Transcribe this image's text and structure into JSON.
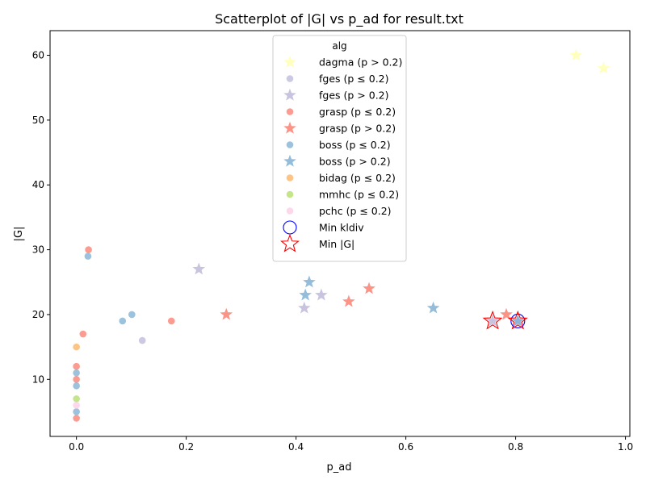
{
  "chart_data": {
    "type": "scatter",
    "title": "Scatterplot of |G| vs p_ad for result.txt",
    "xlabel": "p_ad",
    "ylabel": "|G|",
    "xlim": [
      -0.048,
      1.008
    ],
    "ylim": [
      1.2,
      63.8
    ],
    "xticks": [
      0.0,
      0.2,
      0.4,
      0.6,
      0.8,
      1.0
    ],
    "xtick_labels": [
      "0.0",
      "0.2",
      "0.4",
      "0.6",
      "0.8",
      "1.0"
    ],
    "yticks": [
      10,
      20,
      30,
      40,
      50,
      60
    ],
    "ytick_labels": [
      "10",
      "20",
      "30",
      "40",
      "50",
      "60"
    ],
    "grid": false,
    "legend": {
      "title": "alg",
      "placement": "top-center",
      "entries": [
        {
          "label": "dagma (p > 0.2)",
          "marker": "star",
          "color": "#ffffb3"
        },
        {
          "label": "fges (p ≤ 0.2)",
          "marker": "circle",
          "color": "#bebada"
        },
        {
          "label": "fges (p > 0.2)",
          "marker": "star",
          "color": "#bebada"
        },
        {
          "label": "grasp (p ≤ 0.2)",
          "marker": "circle",
          "color": "#fb8072"
        },
        {
          "label": "grasp (p > 0.2)",
          "marker": "star",
          "color": "#fb8072"
        },
        {
          "label": "boss (p ≤ 0.2)",
          "marker": "circle",
          "color": "#80b1d3"
        },
        {
          "label": "boss (p > 0.2)",
          "marker": "star",
          "color": "#80b1d3"
        },
        {
          "label": "bidag (p ≤ 0.2)",
          "marker": "circle",
          "color": "#fdb462"
        },
        {
          "label": "mmhc (p ≤ 0.2)",
          "marker": "circle",
          "color": "#b3de69"
        },
        {
          "label": "pchc (p ≤ 0.2)",
          "marker": "circle",
          "color": "#fccde5"
        },
        {
          "label": "Min kldiv",
          "marker": "open-circle",
          "color": "#0000ff"
        },
        {
          "label": "Min |G|",
          "marker": "open-star",
          "color": "#ff0000"
        }
      ]
    },
    "series": [
      {
        "name": "dagma (p > 0.2)",
        "marker": "star",
        "color": "#ffffb3",
        "points": [
          {
            "x": 0.91,
            "y": 60
          },
          {
            "x": 0.96,
            "y": 58
          }
        ]
      },
      {
        "name": "fges (p ≤ 0.2)",
        "marker": "circle",
        "color": "#bebada",
        "points": [
          {
            "x": 0.12,
            "y": 16
          }
        ]
      },
      {
        "name": "fges (p > 0.2)",
        "marker": "star",
        "color": "#bebada",
        "points": [
          {
            "x": 0.223,
            "y": 27
          },
          {
            "x": 0.415,
            "y": 21
          },
          {
            "x": 0.446,
            "y": 23
          },
          {
            "x": 0.758,
            "y": 19
          },
          {
            "x": 0.804,
            "y": 19
          }
        ]
      },
      {
        "name": "grasp (p ≤ 0.2)",
        "marker": "circle",
        "color": "#fb8072",
        "points": [
          {
            "x": 0.022,
            "y": 30
          },
          {
            "x": 0.012,
            "y": 17
          },
          {
            "x": 0.173,
            "y": 19
          },
          {
            "x": 0.0,
            "y": 12
          },
          {
            "x": 0.0,
            "y": 10
          },
          {
            "x": 0.0,
            "y": 4
          }
        ]
      },
      {
        "name": "grasp (p > 0.2)",
        "marker": "star",
        "color": "#fb8072",
        "points": [
          {
            "x": 0.273,
            "y": 20
          },
          {
            "x": 0.496,
            "y": 22
          },
          {
            "x": 0.533,
            "y": 24
          },
          {
            "x": 0.783,
            "y": 20
          }
        ]
      },
      {
        "name": "boss (p ≤ 0.2)",
        "marker": "circle",
        "color": "#80b1d3",
        "points": [
          {
            "x": 0.021,
            "y": 29
          },
          {
            "x": 0.101,
            "y": 20
          },
          {
            "x": 0.084,
            "y": 19
          },
          {
            "x": 0.0,
            "y": 11
          },
          {
            "x": 0.0,
            "y": 9
          },
          {
            "x": 0.0,
            "y": 5
          }
        ]
      },
      {
        "name": "boss (p > 0.2)",
        "marker": "star",
        "color": "#80b1d3",
        "points": [
          {
            "x": 0.424,
            "y": 25
          },
          {
            "x": 0.417,
            "y": 23
          },
          {
            "x": 0.65,
            "y": 21
          },
          {
            "x": 0.804,
            "y": 19
          }
        ]
      },
      {
        "name": "bidag (p ≤ 0.2)",
        "marker": "circle",
        "color": "#fdb462",
        "points": [
          {
            "x": 0.0,
            "y": 15
          }
        ]
      },
      {
        "name": "mmhc (p ≤ 0.2)",
        "marker": "circle",
        "color": "#b3de69",
        "points": [
          {
            "x": 0.0,
            "y": 7
          }
        ]
      },
      {
        "name": "pchc (p ≤ 0.2)",
        "marker": "circle",
        "color": "#fccde5",
        "points": [
          {
            "x": 0.0,
            "y": 6
          }
        ]
      },
      {
        "name": "Min kldiv",
        "marker": "open-circle",
        "color": "#0000ff",
        "points": [
          {
            "x": 0.804,
            "y": 19
          }
        ]
      },
      {
        "name": "Min |G|",
        "marker": "open-star",
        "color": "#ff0000",
        "points": [
          {
            "x": 0.758,
            "y": 19
          },
          {
            "x": 0.804,
            "y": 19
          }
        ]
      }
    ]
  }
}
